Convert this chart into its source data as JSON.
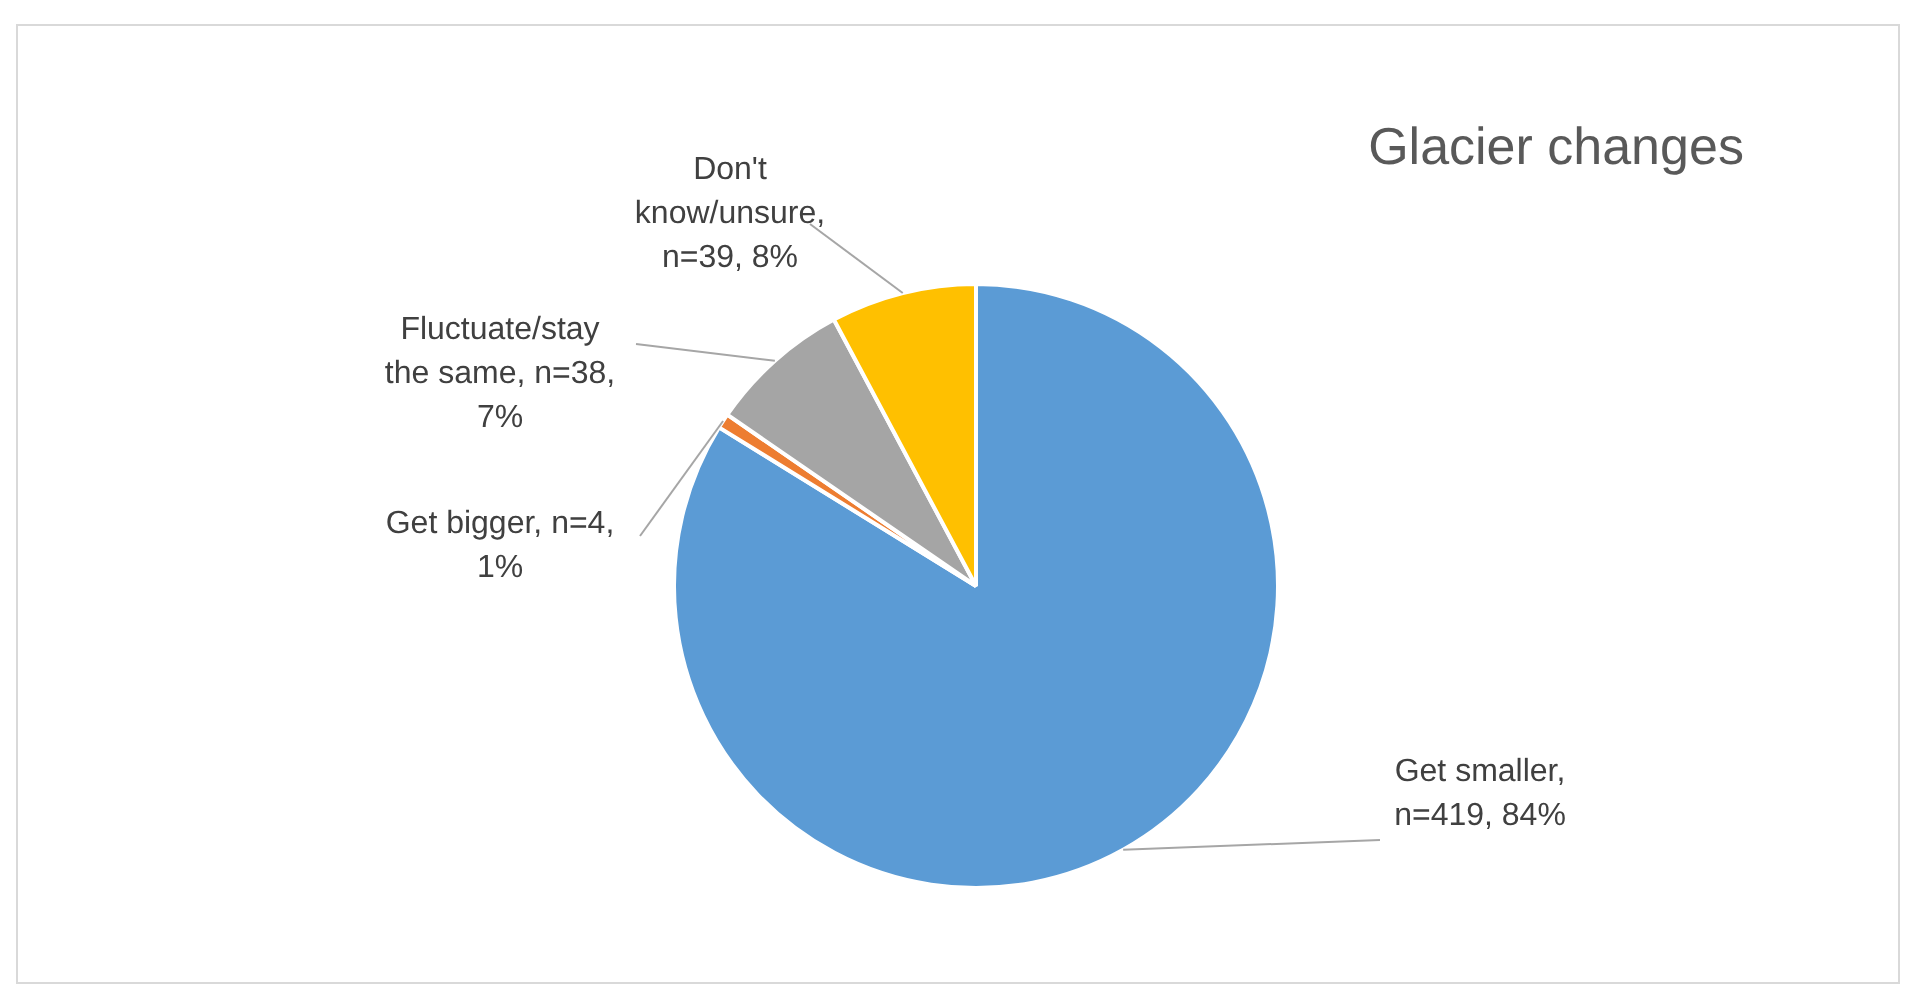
{
  "chart_data": {
    "type": "pie",
    "title": "Glacier changes",
    "categories": [
      "Get smaller, n=419, 84%",
      "Get bigger, n=4, 1%",
      "Fluctuate/stay the same, n=38, 7%",
      "Don't know/unsure, n=39, 8%"
    ],
    "values": [
      419,
      4,
      38,
      39
    ],
    "colors": [
      "#5b9bd5",
      "#ed7d31",
      "#a5a5a5",
      "#ffc000"
    ],
    "legend": false
  }
}
